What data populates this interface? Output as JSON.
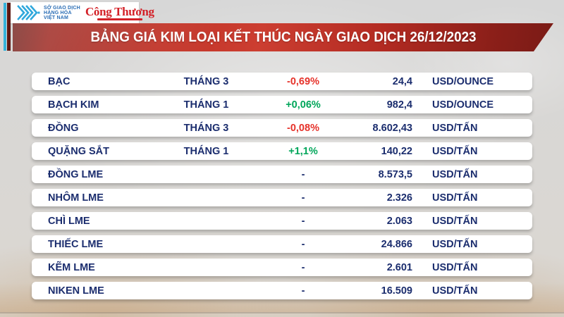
{
  "header": {
    "logo": {
      "mxv_icon": "nested-chevrons-icon",
      "exchange_name_lines": [
        "SỞ GIAO DỊCH",
        "HÀNG HÓA",
        "VIỆT NAM"
      ],
      "brand": "Công Thương"
    },
    "banner_title": "BẢNG GIÁ KIM LOẠI KẾT THÚC NGÀY GIAO DỊCH 26/12/2023"
  },
  "colors": {
    "banner_red": "#c23428",
    "banner_dark_red": "#7a1b16",
    "accent_cyan": "#35b2da",
    "accent_maroon": "#5e1712",
    "text_navy": "#1b2d6e",
    "change_down_red": "#e6322a",
    "change_up_green": "#00a65a",
    "brand_red": "#d32027",
    "logo_blue": "#2fa8dc",
    "row_background": "#ffffff",
    "page_background": "#d9d7d3"
  },
  "chart_data": {
    "type": "table",
    "title": "BẢNG GIÁ KIM LOẠI KẾT THÚC NGÀY GIAO DỊCH 26/12/2023",
    "columns": [
      "commodity",
      "contract_month",
      "percent_change",
      "price",
      "unit"
    ],
    "rows": [
      {
        "name": "BẠC",
        "month": "THÁNG 3",
        "change": "-0,69%",
        "direction": "down",
        "value": "24,4",
        "unit": "USD/OUNCE"
      },
      {
        "name": "BẠCH KIM",
        "month": "THÁNG 1",
        "change": "+0,06%",
        "direction": "up",
        "value": "982,4",
        "unit": "USD/OUNCE"
      },
      {
        "name": "ĐỒNG",
        "month": "THÁNG 3",
        "change": "-0,08%",
        "direction": "down",
        "value": "8.602,43",
        "unit": "USD/TẤN"
      },
      {
        "name": "QUẶNG SẮT",
        "month": "THÁNG 1",
        "change": "+1,1%",
        "direction": "up",
        "value": "140,22",
        "unit": "USD/TẤN"
      },
      {
        "name": "ĐỒNG LME",
        "month": "",
        "change": "-",
        "direction": "flat",
        "value": "8.573,5",
        "unit": "USD/TẤN"
      },
      {
        "name": "NHÔM LME",
        "month": "",
        "change": "-",
        "direction": "flat",
        "value": "2.326",
        "unit": "USD/TẤN"
      },
      {
        "name": "CHÌ LME",
        "month": "",
        "change": "-",
        "direction": "flat",
        "value": "2.063",
        "unit": "USD/TẤN"
      },
      {
        "name": "THIẾC LME",
        "month": "",
        "change": "-",
        "direction": "flat",
        "value": "24.866",
        "unit": "USD/TẤN"
      },
      {
        "name": "KẼM LME",
        "month": "",
        "change": "-",
        "direction": "flat",
        "value": "2.601",
        "unit": "USD/TẤN"
      },
      {
        "name": "NIKEN LME",
        "month": "",
        "change": "-",
        "direction": "flat",
        "value": "16.509",
        "unit": "USD/TẤN"
      }
    ]
  }
}
